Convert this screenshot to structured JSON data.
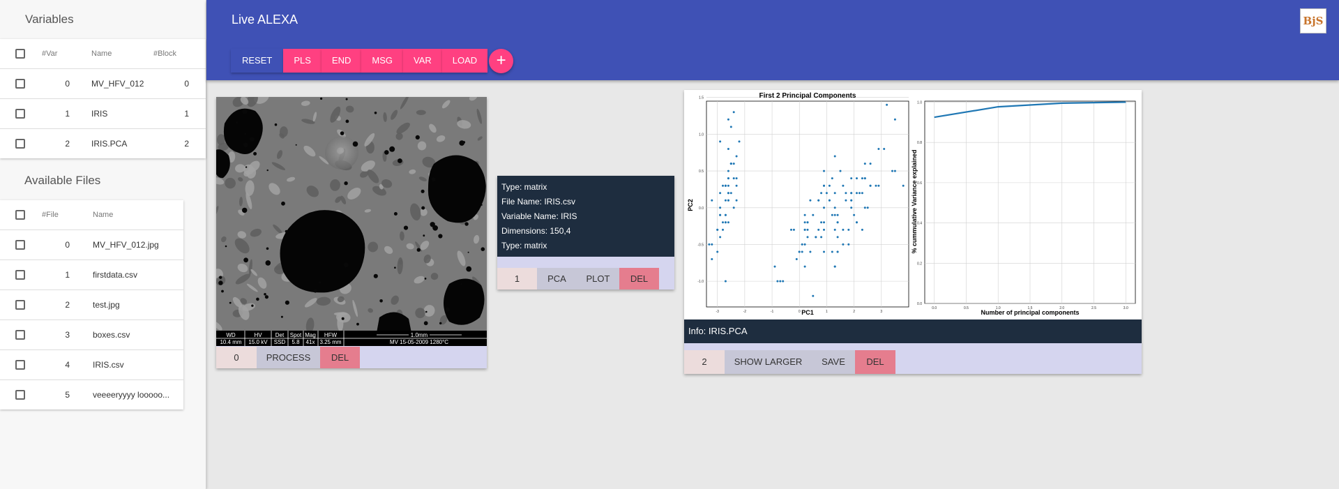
{
  "sidebar": {
    "variables_title": "Variables",
    "variables_columns": [
      "#Var",
      "Name",
      "#Block"
    ],
    "variables": [
      {
        "num": "0",
        "name": "MV_HFV_012",
        "block": "0"
      },
      {
        "num": "1",
        "name": "IRIS",
        "block": "1"
      },
      {
        "num": "2",
        "name": "IRIS.PCA",
        "block": "2"
      }
    ],
    "files_title": "Available Files",
    "files_columns": [
      "#File",
      "Name"
    ],
    "files": [
      {
        "num": "0",
        "name": "MV_HFV_012.jpg"
      },
      {
        "num": "1",
        "name": "firstdata.csv"
      },
      {
        "num": "2",
        "name": "test.jpg"
      },
      {
        "num": "3",
        "name": "boxes.csv"
      },
      {
        "num": "4",
        "name": "IRIS.csv"
      },
      {
        "num": "5",
        "name": "veeeeryyyy looooo..."
      }
    ]
  },
  "header": {
    "title": "Live ALEXA",
    "logo_text": "BjS",
    "toolbar": [
      "RESET",
      "PLS",
      "END",
      "MSG",
      "VAR",
      "LOAD"
    ],
    "fab": "+"
  },
  "card_image": {
    "info_headers": [
      "WD",
      "HV",
      "Det",
      "Spot",
      "Mag",
      "HFW"
    ],
    "info_values": [
      "10.4 mm",
      "15.0 kV",
      "SSD",
      "5.8",
      "41x",
      "3.25 mm"
    ],
    "scale_label": "1.0mm",
    "date_label": "MV 15-05-2009 1280°C",
    "actions": [
      "0",
      "PROCESS",
      "DEL"
    ]
  },
  "card_info": {
    "lines": [
      "Type: matrix",
      "File Name: IRIS.csv",
      "Variable Name: IRIS",
      "Dimensions: 150,4",
      "Type: matrix"
    ],
    "actions": [
      "1",
      "PCA",
      "PLOT",
      "DEL"
    ]
  },
  "card_plot": {
    "info": "Info: IRIS.PCA",
    "actions": [
      "2",
      "SHOW LARGER",
      "SAVE",
      "DEL"
    ]
  },
  "chart_data": [
    {
      "type": "scatter",
      "title": "First 2 Principal Components",
      "xlabel": "PC1",
      "ylabel": "PC2",
      "xlim": [
        -3.4,
        4.0
      ],
      "ylim": [
        -1.35,
        1.45
      ],
      "xticks": [
        "-3",
        "-2",
        "-1",
        "0",
        "1",
        "2",
        "3"
      ],
      "yticks": [
        "-1.0",
        "-0.5",
        "0.0",
        "0.5",
        "1.0",
        "1.5"
      ],
      "grid": true,
      "color": "#1f77b4",
      "points": [
        [
          -2.7,
          0.3
        ],
        [
          -2.9,
          -0.1
        ],
        [
          -3.0,
          -0.3
        ],
        [
          -2.9,
          -0.4
        ],
        [
          -2.7,
          0.3
        ],
        [
          -2.3,
          0.7
        ],
        [
          -2.9,
          -0.1
        ],
        [
          -2.6,
          0.2
        ],
        [
          -3.2,
          -0.7
        ],
        [
          -2.7,
          -0.2
        ],
        [
          -2.5,
          0.6
        ],
        [
          -2.6,
          0.1
        ],
        [
          -2.8,
          -0.2
        ],
        [
          -3.3,
          -0.5
        ],
        [
          -2.6,
          1.2
        ],
        [
          -2.4,
          1.3
        ],
        [
          -2.6,
          0.8
        ],
        [
          -2.7,
          0.3
        ],
        [
          -2.2,
          0.9
        ],
        [
          -2.6,
          0.5
        ],
        [
          -2.3,
          0.4
        ],
        [
          -2.6,
          0.4
        ],
        [
          -3.2,
          0.1
        ],
        [
          -2.3,
          0.1
        ],
        [
          -2.4,
          0.0
        ],
        [
          -2.6,
          -0.2
        ],
        [
          -2.5,
          0.2
        ],
        [
          -2.6,
          0.4
        ],
        [
          -2.6,
          0.3
        ],
        [
          -2.7,
          -0.1
        ],
        [
          -2.7,
          -0.2
        ],
        [
          -2.3,
          0.3
        ],
        [
          -2.9,
          0.9
        ],
        [
          -2.5,
          1.1
        ],
        [
          -2.7,
          -0.1
        ],
        [
          -2.9,
          0.0
        ],
        [
          -2.5,
          0.6
        ],
        [
          -2.9,
          0.2
        ],
        [
          -3.0,
          -0.6
        ],
        [
          -2.6,
          0.2
        ],
        [
          -2.8,
          0.3
        ],
        [
          -2.7,
          -1.0
        ],
        [
          -3.2,
          -0.5
        ],
        [
          -2.6,
          0.1
        ],
        [
          -2.4,
          0.4
        ],
        [
          -2.8,
          -0.3
        ],
        [
          -2.5,
          0.6
        ],
        [
          -3.0,
          -0.3
        ],
        [
          -2.4,
          0.6
        ],
        [
          -2.7,
          0.1
        ],
        [
          1.3,
          0.7
        ],
        [
          0.9,
          0.3
        ],
        [
          1.5,
          0.5
        ],
        [
          0.2,
          -0.8
        ],
        [
          1.1,
          0.1
        ],
        [
          0.6,
          -0.4
        ],
        [
          1.1,
          0.3
        ],
        [
          -0.8,
          -1.0
        ],
        [
          1.0,
          0.2
        ],
        [
          -0.1,
          -0.7
        ],
        [
          -0.6,
          -1.0
        ],
        [
          0.5,
          -0.1
        ],
        [
          0.2,
          -0.5
        ],
        [
          0.9,
          -0.3
        ],
        [
          -0.3,
          -0.3
        ],
        [
          0.9,
          0.5
        ],
        [
          0.7,
          -0.3
        ],
        [
          0.2,
          -0.3
        ],
        [
          0.9,
          -0.6
        ],
        [
          0.0,
          -0.6
        ],
        [
          1.1,
          0.1
        ],
        [
          0.4,
          0.1
        ],
        [
          1.3,
          -0.3
        ],
        [
          0.9,
          -0.2
        ],
        [
          0.7,
          0.1
        ],
        [
          0.9,
          0.3
        ],
        [
          1.3,
          0.2
        ],
        [
          1.6,
          0.3
        ],
        [
          0.8,
          -0.2
        ],
        [
          -0.2,
          -0.3
        ],
        [
          0.1,
          -0.6
        ],
        [
          0.0,
          -0.6
        ],
        [
          0.2,
          -0.2
        ],
        [
          1.4,
          -0.4
        ],
        [
          0.6,
          -0.4
        ],
        [
          0.8,
          0.2
        ],
        [
          1.2,
          0.4
        ],
        [
          0.8,
          -0.4
        ],
        [
          0.2,
          -0.1
        ],
        [
          0.1,
          -0.5
        ],
        [
          0.4,
          -0.6
        ],
        [
          0.9,
          0.0
        ],
        [
          0.3,
          -0.3
        ],
        [
          -0.7,
          -1.0
        ],
        [
          0.3,
          -0.4
        ],
        [
          0.3,
          -0.2
        ],
        [
          0.3,
          -0.2
        ],
        [
          0.7,
          0.1
        ],
        [
          -0.9,
          -0.8
        ],
        [
          0.2,
          -0.3
        ],
        [
          2.5,
          0.0
        ],
        [
          1.4,
          -0.6
        ],
        [
          2.6,
          0.3
        ],
        [
          2.0,
          -0.1
        ],
        [
          2.4,
          0.0
        ],
        [
          3.4,
          0.5
        ],
        [
          0.5,
          -1.2
        ],
        [
          2.9,
          0.3
        ],
        [
          2.3,
          -0.3
        ],
        [
          2.9,
          0.8
        ],
        [
          1.7,
          0.2
        ],
        [
          1.8,
          -0.3
        ],
        [
          2.2,
          0.2
        ],
        [
          1.3,
          -0.8
        ],
        [
          1.6,
          -0.5
        ],
        [
          1.9,
          0.1
        ],
        [
          1.9,
          0.0
        ],
        [
          3.5,
          1.2
        ],
        [
          3.8,
          0.3
        ],
        [
          1.3,
          -0.8
        ],
        [
          2.4,
          0.4
        ],
        [
          1.2,
          -0.6
        ],
        [
          3.5,
          0.5
        ],
        [
          1.4,
          -0.1
        ],
        [
          2.3,
          0.4
        ],
        [
          2.6,
          0.6
        ],
        [
          1.3,
          -0.1
        ],
        [
          1.3,
          0.0
        ],
        [
          2.1,
          -0.2
        ],
        [
          2.4,
          0.6
        ],
        [
          2.8,
          0.3
        ],
        [
          3.2,
          1.4
        ],
        [
          2.1,
          -0.2
        ],
        [
          1.4,
          -0.2
        ],
        [
          1.8,
          -0.5
        ],
        [
          3.1,
          0.8
        ],
        [
          2.1,
          0.2
        ],
        [
          1.9,
          0.1
        ],
        [
          1.2,
          -0.1
        ],
        [
          2.1,
          0.4
        ],
        [
          2.3,
          0.2
        ],
        [
          1.9,
          0.4
        ],
        [
          1.4,
          -0.6
        ],
        [
          2.6,
          0.3
        ],
        [
          2.4,
          0.4
        ],
        [
          1.9,
          0.2
        ],
        [
          1.6,
          -0.3
        ],
        [
          1.7,
          0.1
        ],
        [
          1.9,
          0.2
        ],
        [
          1.4,
          -0.2
        ]
      ]
    },
    {
      "type": "line",
      "title": "",
      "xlabel": "Number of principal components",
      "ylabel": "% cummulative Variance explained",
      "x": [
        0,
        1,
        2,
        3
      ],
      "y": [
        0.925,
        0.977,
        0.995,
        1.0
      ],
      "xlim": [
        -0.15,
        3.15
      ],
      "ylim": [
        0.0,
        1.005
      ],
      "xticks": [
        "0.0",
        "0.5",
        "1.0",
        "1.5",
        "2.0",
        "2.5",
        "3.0"
      ],
      "yticks": [
        "0.0",
        "0.2",
        "0.4",
        "0.6",
        "0.8",
        "1.0"
      ],
      "grid": true,
      "color": "#1f77b4"
    }
  ]
}
